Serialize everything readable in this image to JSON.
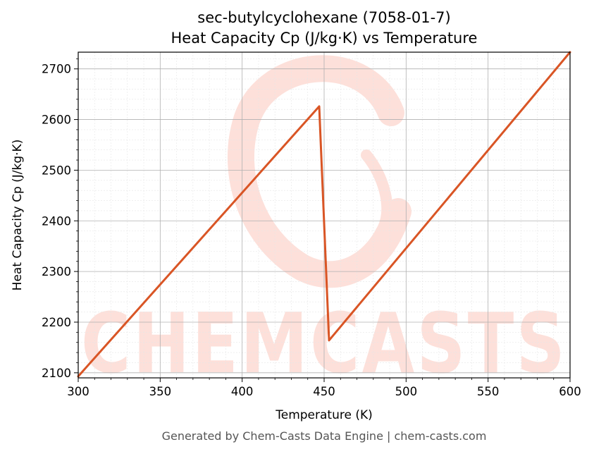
{
  "chart_data": {
    "type": "line",
    "title": "sec-butylcyclohexane (7058-01-7)",
    "subtitle": "Heat Capacity Cp (J/kg·K) vs Temperature",
    "xlabel": "Temperature (K)",
    "ylabel": "Heat Capacity Cp (J/kg·K)",
    "xlim": [
      300,
      600
    ],
    "ylim": [
      2090,
      2733
    ],
    "xticks": [
      300,
      350,
      400,
      450,
      500,
      550,
      600
    ],
    "yticks": [
      2100,
      2200,
      2300,
      2400,
      2500,
      2600,
      2700
    ],
    "grid": true,
    "series": [
      {
        "color": "#d95525",
        "x": [
          300,
          447,
          453,
          600
        ],
        "y": [
          2093,
          2626,
          2164,
          2733
        ]
      }
    ],
    "colors": {
      "line": "#d95525",
      "watermark": "#fde0da",
      "grid_major": "#b0b0b0",
      "grid_minor": "#e6e6e6"
    }
  },
  "watermark": {
    "text": "CHEMCASTS"
  },
  "footer": {
    "text": "Generated by Chem-Casts Data Engine | chem-casts.com"
  }
}
